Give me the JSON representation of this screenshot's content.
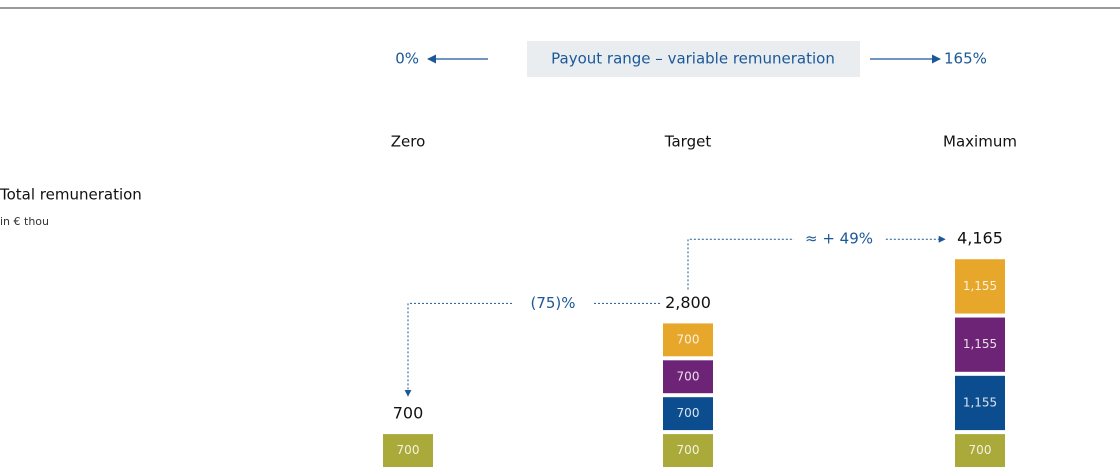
{
  "chart_data": {
    "type": "stacked_bar",
    "header": {
      "left": "0%",
      "center": "Payout range – variable remuneration",
      "right": "165%"
    },
    "label": "Total remuneration",
    "unit": "in € thou",
    "categories": [
      "Zero",
      "Target",
      "Maximum"
    ],
    "series": [
      {
        "color": "#a9aa3a",
        "values": [
          700,
          700,
          700
        ]
      },
      {
        "color": "#0b4d8e",
        "values": [
          null,
          700,
          1155
        ],
        "value_labels": [
          null,
          "700",
          "1,155"
        ]
      },
      {
        "color": "#6e2476",
        "values": [
          null,
          700,
          1155
        ],
        "value_labels": [
          null,
          "700",
          "1,155"
        ]
      },
      {
        "color": "#e6a72a",
        "values": [
          null,
          700,
          1155
        ],
        "value_labels": [
          null,
          "700",
          "1,155"
        ]
      }
    ],
    "totals": [
      700,
      2800,
      4165
    ],
    "total_labels": [
      "700",
      "2,800",
      "4,165"
    ],
    "annotations": [
      "(75)%",
      "≈ + 49%"
    ]
  }
}
